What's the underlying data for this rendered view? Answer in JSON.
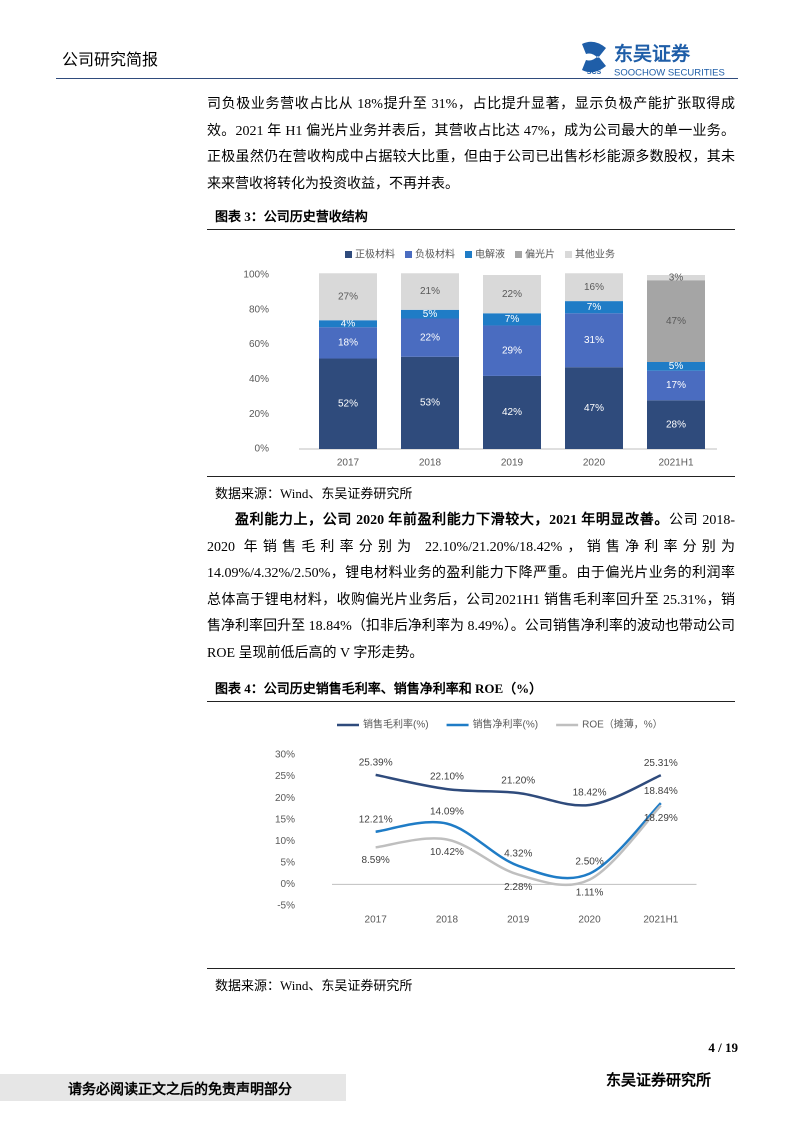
{
  "header": {
    "title": "公司研究简报",
    "logo_mark": "SCS",
    "logo_cn": "东吴证券",
    "logo_en": "SOOCHOW SECURITIES"
  },
  "paragraphs": [
    {
      "text": "司负极业务营收占比从 18%提升至 31%，占比提升显著，显示负极产能扩张取得成效。2021 年 H1 偏光片业务并表后，其营收占比达 47%，成为公司最大的单一业务。正极虽然仍在营收构成中占据较大比重，但由于公司已出售杉杉能源多数股权，其未来来营收将转化为投资收益，不再并表。"
    },
    {
      "bold": "盈利能力上，公司 2020 年前盈利能力下滑较大，2021 年明显改善。",
      "text": "公司 2018-2020 年销售毛利率分别为 22.10%/21.20%/18.42%，销售净利率分别为 14.09%/4.32%/2.50%，锂电材料业务的盈利能力下降严重。由于偏光片业务的利润率总体高于锂电材料，收购偏光片业务后，公司2021H1 销售毛利率回升至 25.31%，销售净利率回升至 18.84%（扣非后净利率为 8.49%）。公司销售净利率的波动也带动公司 ROE 呈现前低后高的 V 字形走势。"
    }
  ],
  "chart_data": [
    {
      "type": "bar",
      "stacked": true,
      "title": "图表 3：公司历史营收结构",
      "source": "数据来源：Wind、东吴证券研究所",
      "categories": [
        "2017",
        "2018",
        "2019",
        "2020",
        "2021H1"
      ],
      "series": [
        {
          "name": "正极材料",
          "color": "#2f4b7c",
          "values": [
            52,
            53,
            42,
            47,
            28
          ],
          "value_labels": [
            "52%",
            "53%",
            "42%",
            "47%",
            "28%"
          ]
        },
        {
          "name": "负极材料",
          "color": "#4a6cc0",
          "values": [
            18,
            22,
            29,
            31,
            17
          ],
          "value_labels": [
            "18%",
            "22%",
            "29%",
            "31%",
            "17%"
          ]
        },
        {
          "name": "电解液",
          "color": "#1f7cc6",
          "values": [
            4,
            5,
            7,
            7,
            5
          ],
          "value_labels": [
            "4%",
            "5%",
            "7%",
            "7%",
            "5%"
          ]
        },
        {
          "name": "偏光片",
          "color": "#a5a5a5",
          "values": [
            null,
            null,
            null,
            null,
            47
          ],
          "value_labels": [
            null,
            null,
            null,
            null,
            "47%"
          ]
        },
        {
          "name": "其他业务",
          "color": "#d9d9d9",
          "values": [
            27,
            21,
            22,
            16,
            3
          ],
          "value_labels": [
            "27%",
            "21%",
            "22%",
            "16%",
            "3%"
          ]
        }
      ],
      "ylim": [
        0,
        100
      ],
      "yticks": [
        {
          "value": 0,
          "label": "0%"
        },
        {
          "value": 20,
          "label": "20%"
        },
        {
          "value": 40,
          "label": "40%"
        },
        {
          "value": 60,
          "label": "60%"
        },
        {
          "value": 80,
          "label": "80%"
        },
        {
          "value": 100,
          "label": "100%"
        }
      ],
      "grid": false
    },
    {
      "type": "line",
      "smooth": true,
      "title": "图表 4：公司历史销售毛利率、销售净利率和 ROE（%）",
      "source": "数据来源：Wind、东吴证券研究所",
      "categories": [
        "2017",
        "2018",
        "2019",
        "2020",
        "2021H1"
      ],
      "series": [
        {
          "name": "销售毛利率(%)",
          "color": "#2f4b7c",
          "label_pos": "above",
          "values": [
            25.39,
            22.1,
            21.2,
            18.42,
            25.31
          ],
          "value_labels": [
            "25.39%",
            "22.10%",
            "21.20%",
            "18.42%",
            "25.31%"
          ]
        },
        {
          "name": "销售净利率(%)",
          "color": "#1f7cc6",
          "label_pos": "above",
          "values": [
            12.21,
            14.09,
            4.32,
            2.5,
            18.84
          ],
          "value_labels": [
            "12.21%",
            "14.09%",
            "4.32%",
            "2.50%",
            "18.84%"
          ]
        },
        {
          "name": "ROE（摊薄，%）",
          "color": "#bfbfbf",
          "label_pos": "below",
          "values": [
            8.59,
            10.42,
            2.28,
            1.11,
            18.29
          ],
          "value_labels": [
            "8.59%",
            "10.42%",
            "2.28%",
            "1.11%",
            "18.29%"
          ]
        }
      ],
      "ylim": [
        -5,
        30
      ],
      "yticks": [
        {
          "value": -5,
          "label": "-5%"
        },
        {
          "value": 0,
          "label": "0%"
        },
        {
          "value": 5,
          "label": "5%"
        },
        {
          "value": 10,
          "label": "10%"
        },
        {
          "value": 15,
          "label": "15%"
        },
        {
          "value": 20,
          "label": "20%"
        },
        {
          "value": 25,
          "label": "25%"
        },
        {
          "value": 30,
          "label": "30%"
        }
      ],
      "grid": false
    }
  ],
  "footer": {
    "page": "4 / 19",
    "disclaimer": "请务必阅读正文之后的免责声明部分",
    "org": "东吴证券研究所"
  }
}
